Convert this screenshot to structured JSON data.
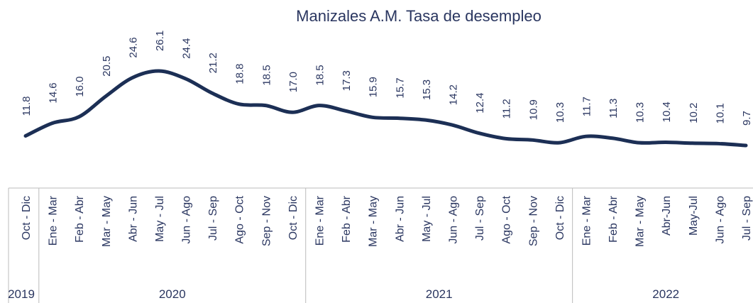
{
  "chart_data": {
    "type": "line",
    "title": "Manizales A.M. Tasa de desempleo",
    "categories": [
      "Oct - Dic",
      "Ene - Mar",
      "Feb - Abr",
      "Mar - May",
      "Abr - Jun",
      "May - Jul",
      "Jun - Ago",
      "Jul - Sep",
      "Ago - Oct",
      "Sep - Nov",
      "Oct - Dic",
      "Ene - Mar",
      "Feb - Abr",
      "Mar - May",
      "Abr - Jun",
      "May - Jul",
      "Jun - Ago",
      "Jul - Sep",
      "Ago - Oct",
      "Sep - Nov",
      "Oct - Dic",
      "Ene - Mar",
      "Feb - Abr",
      "Mar - May",
      "Abr-Jun",
      "May-Jul",
      "Jun - Ago",
      "Jul - Sep"
    ],
    "category_groups": [
      {
        "name": "2019",
        "size": 1
      },
      {
        "name": "2020",
        "size": 10
      },
      {
        "name": "2021",
        "size": 10
      },
      {
        "name": "2022",
        "size": 7
      }
    ],
    "values": [
      11.8,
      14.6,
      16.0,
      20.5,
      24.6,
      26.1,
      24.4,
      21.2,
      18.8,
      18.5,
      17.0,
      18.5,
      17.3,
      15.9,
      15.7,
      15.3,
      14.2,
      12.4,
      11.2,
      10.9,
      10.3,
      11.7,
      11.3,
      10.3,
      10.4,
      10.2,
      10.1,
      9.7
    ],
    "value_labels": [
      "11.8",
      "14.6",
      "16.0",
      "20.5",
      "24.6",
      "26.1",
      "24.4",
      "21.2",
      "18.8",
      "18.5",
      "17.0",
      "18.5",
      "17.3",
      "15.9",
      "15.7",
      "15.3",
      "14.2",
      "12.4",
      "11.2",
      "10.9",
      "10.3",
      "11.7",
      "11.3",
      "10.3",
      "10.4",
      "10.2",
      "10.1",
      "9.7"
    ],
    "color": "#1c2f55",
    "smooth": true
  }
}
